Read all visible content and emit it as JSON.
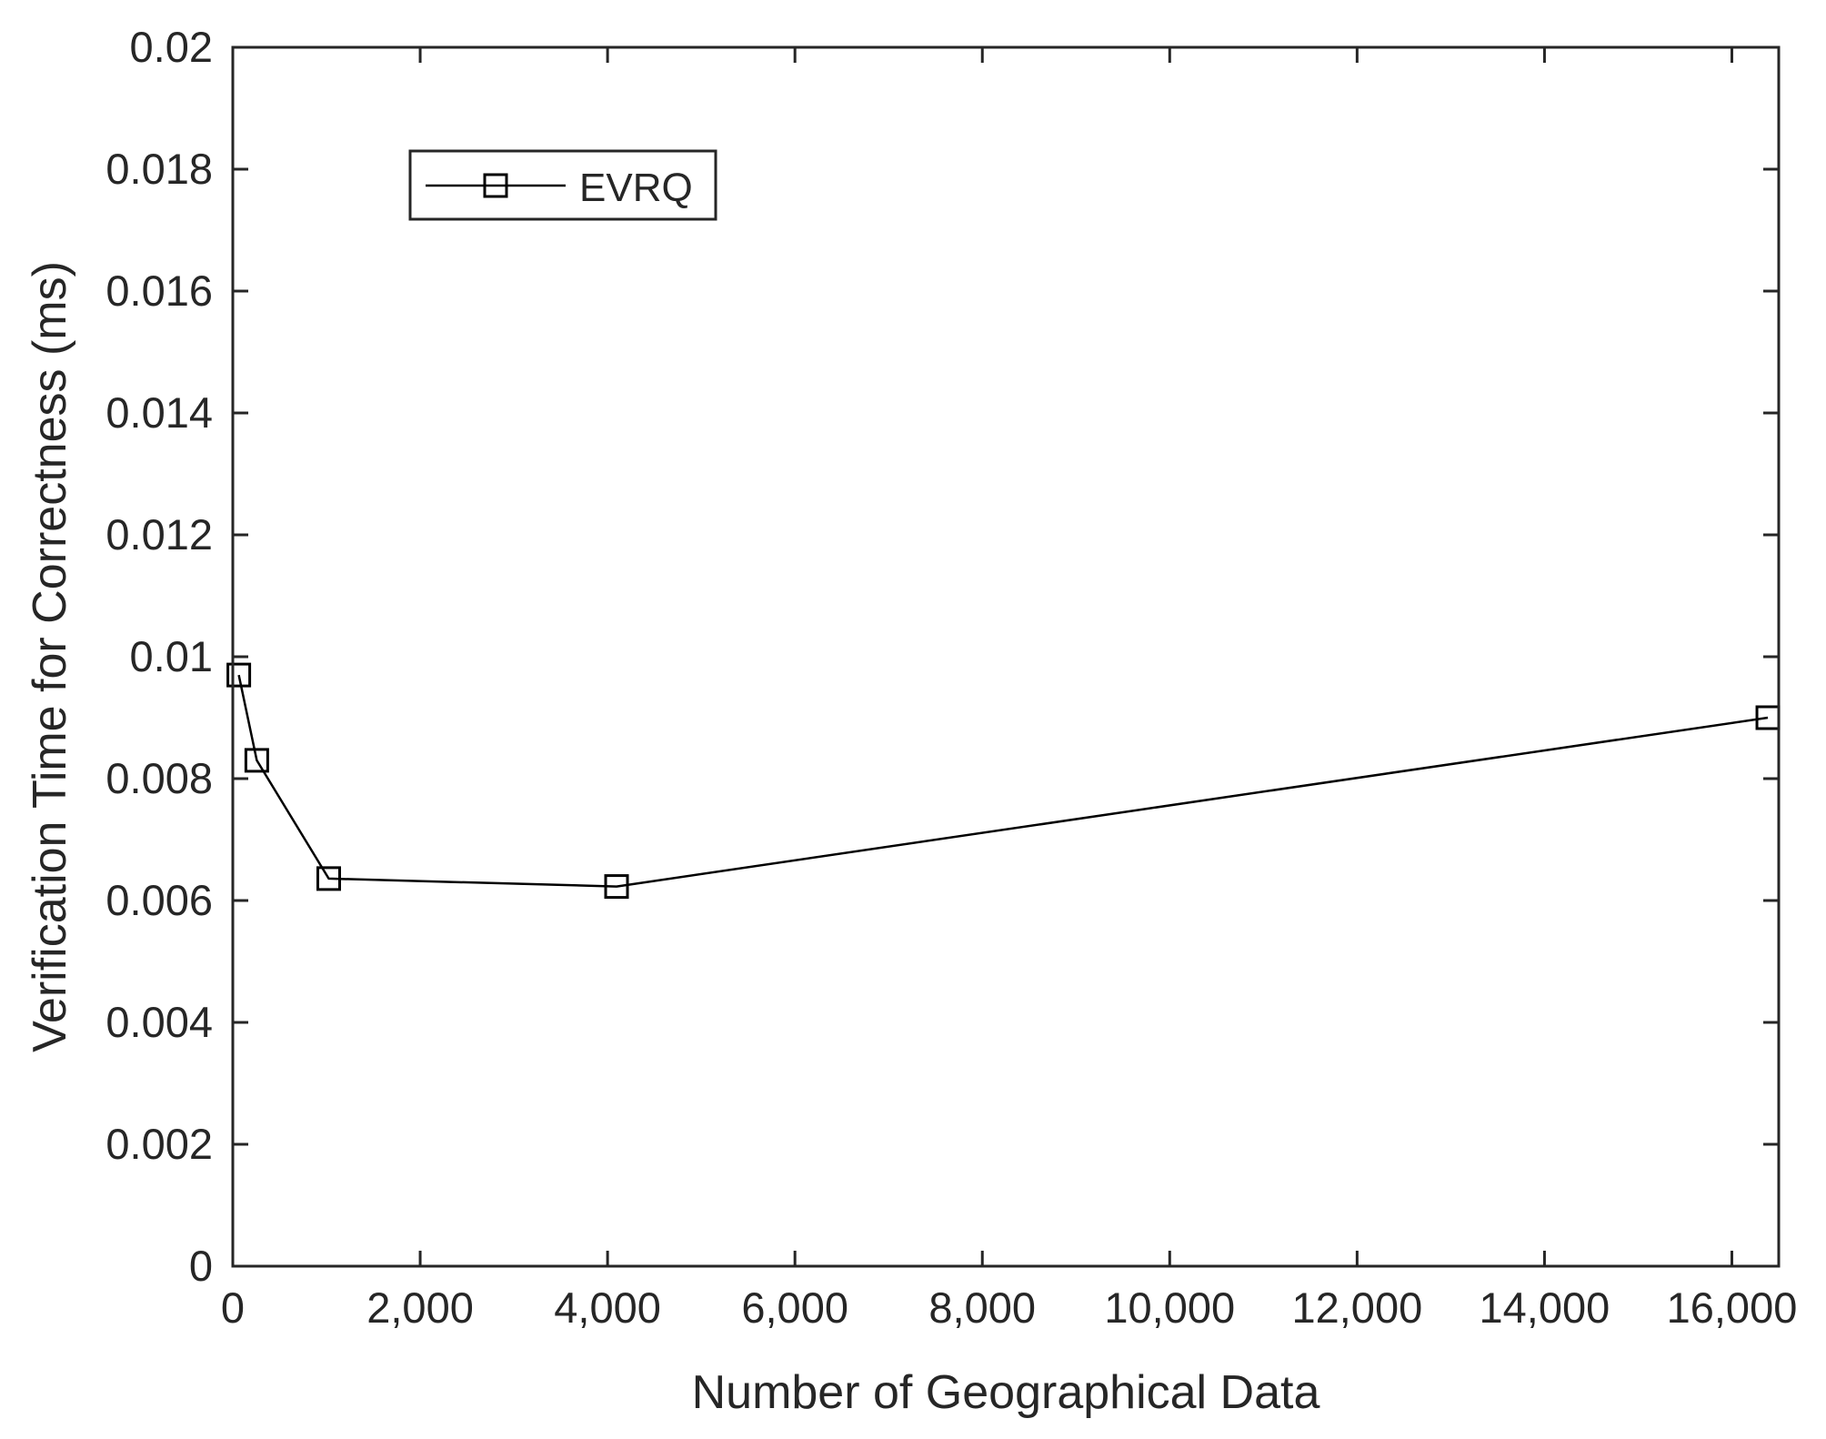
{
  "chart_data": {
    "type": "line",
    "xlabel": "Number of Geographical Data",
    "ylabel": "Verification Time for Correctness (ms)",
    "xlim": [
      0,
      16500
    ],
    "ylim": [
      0,
      0.02
    ],
    "x_ticks": [
      0,
      2000,
      4000,
      6000,
      8000,
      10000,
      12000,
      14000,
      16000
    ],
    "x_tick_labels": [
      "0",
      "2,000",
      "4,000",
      "6,000",
      "8,000",
      "10,000",
      "12,000",
      "14,000",
      "16,000"
    ],
    "y_ticks": [
      0,
      0.002,
      0.004,
      0.006,
      0.008,
      0.01,
      0.012,
      0.014,
      0.016,
      0.018,
      0.02
    ],
    "y_tick_labels": [
      "0",
      "0.002",
      "0.004",
      "0.006",
      "0.008",
      "0.01",
      "0.012",
      "0.014",
      "0.016",
      "0.018",
      "0.02"
    ],
    "grid": false,
    "legend_position": "top-left",
    "series": [
      {
        "name": "EVRQ",
        "marker": "square",
        "color": "#000000",
        "x": [
          64,
          256,
          1024,
          4096,
          16384
        ],
        "y": [
          0.0097,
          0.0083,
          0.00636,
          0.00623,
          0.009
        ]
      }
    ]
  }
}
